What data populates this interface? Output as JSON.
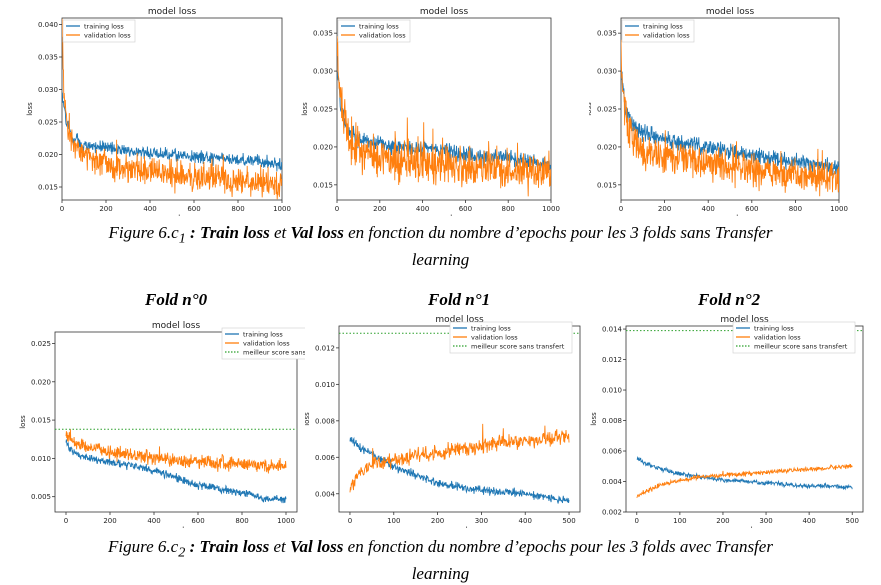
{
  "caption_top": {
    "prefix": "Figure 6.c",
    "sub": "1",
    "colon": " : ",
    "train": "Train loss",
    "et": " et ",
    "val": "Val loss",
    "rest": " en fonction du nombre d’epochs pour les 3 folds sans Transfer",
    "line2": "learning"
  },
  "caption_bottom": {
    "prefix": "Figure 6.c",
    "sub": "2",
    "colon": " : ",
    "train": "Train loss",
    "et": " et ",
    "val": "Val loss",
    "rest": " en fonction du nombre d’epochs pour les 3 folds avec Transfer",
    "line2": "learning"
  },
  "fold_titles": [
    "Fold n°0",
    "Fold n°1",
    "Fold n°2"
  ],
  "colors": {
    "train": "#1f77b4",
    "val": "#ff7f0e",
    "best": "#2ca02c",
    "axis": "#333333"
  },
  "chart_data": [
    {
      "type": "line",
      "title": "model loss",
      "xlabel": "epoch",
      "ylabel": "loss",
      "xlim": [
        0,
        1000
      ],
      "ylim": [
        0.013,
        0.041
      ],
      "xticks": [
        0,
        200,
        400,
        600,
        800,
        1000
      ],
      "yticks": [
        0.015,
        0.02,
        0.025,
        0.03,
        0.035,
        0.04
      ],
      "ytick_labels": [
        "0.015",
        "0.020",
        "0.025",
        "0.030",
        "0.035",
        "0.040"
      ],
      "grid": false,
      "legend": "top-left",
      "series": [
        {
          "name": "training loss",
          "points": [
            [
              0,
              0.029
            ],
            [
              20,
              0.025
            ],
            [
              50,
              0.0225
            ],
            [
              100,
              0.0215
            ],
            [
              200,
              0.021
            ],
            [
              300,
              0.0205
            ],
            [
              400,
              0.0203
            ],
            [
              500,
              0.02
            ],
            [
              600,
              0.0198
            ],
            [
              700,
              0.0195
            ],
            [
              800,
              0.0192
            ],
            [
              900,
              0.019
            ],
            [
              1000,
              0.0182
            ]
          ],
          "noise": 0.0008
        },
        {
          "name": "validation loss",
          "points": [
            [
              0,
              0.04
            ],
            [
              10,
              0.028
            ],
            [
              30,
              0.023
            ],
            [
              60,
              0.021
            ],
            [
              100,
              0.02
            ],
            [
              200,
              0.0185
            ],
            [
              300,
              0.018
            ],
            [
              400,
              0.0175
            ],
            [
              500,
              0.017
            ],
            [
              600,
              0.0165
            ],
            [
              700,
              0.0163
            ],
            [
              800,
              0.016
            ],
            [
              900,
              0.0157
            ],
            [
              1000,
              0.0155
            ]
          ],
          "noise": 0.0018
        }
      ]
    },
    {
      "type": "line",
      "title": "model loss",
      "xlabel": "epoch",
      "ylabel": "loss",
      "xlim": [
        0,
        1000
      ],
      "ylim": [
        0.013,
        0.037
      ],
      "xticks": [
        0,
        200,
        400,
        600,
        800,
        1000
      ],
      "yticks": [
        0.015,
        0.02,
        0.025,
        0.03,
        0.035
      ],
      "ytick_labels": [
        "0.015",
        "0.020",
        "0.025",
        "0.030",
        "0.035"
      ],
      "grid": false,
      "legend": "top-left",
      "series": [
        {
          "name": "training loss",
          "points": [
            [
              0,
              0.03
            ],
            [
              20,
              0.025
            ],
            [
              50,
              0.022
            ],
            [
              100,
              0.021
            ],
            [
              200,
              0.0205
            ],
            [
              300,
              0.02
            ],
            [
              400,
              0.0198
            ],
            [
              500,
              0.0195
            ],
            [
              600,
              0.019
            ],
            [
              700,
              0.0187
            ],
            [
              800,
              0.0185
            ],
            [
              900,
              0.018
            ],
            [
              1000,
              0.0178
            ]
          ],
          "noise": 0.0009
        },
        {
          "name": "validation loss",
          "points": [
            [
              0,
              0.034
            ],
            [
              10,
              0.028
            ],
            [
              30,
              0.024
            ],
            [
              60,
              0.021
            ],
            [
              100,
              0.0195
            ],
            [
              200,
              0.0188
            ],
            [
              300,
              0.0182
            ],
            [
              400,
              0.018
            ],
            [
              500,
              0.0178
            ],
            [
              600,
              0.0175
            ],
            [
              700,
              0.0172
            ],
            [
              800,
              0.017
            ],
            [
              900,
              0.0168
            ],
            [
              1000,
              0.0165
            ]
          ],
          "noise": 0.0022
        }
      ]
    },
    {
      "type": "line",
      "title": "model loss",
      "xlabel": "epoch",
      "ylabel": "loss",
      "xlim": [
        0,
        1000
      ],
      "ylim": [
        0.013,
        0.037
      ],
      "xticks": [
        0,
        200,
        400,
        600,
        800,
        1000
      ],
      "yticks": [
        0.015,
        0.02,
        0.025,
        0.03,
        0.035
      ],
      "ytick_labels": [
        "0.015",
        "0.020",
        "0.025",
        "0.030",
        "0.035"
      ],
      "grid": false,
      "legend": "top-left",
      "series": [
        {
          "name": "training loss",
          "points": [
            [
              0,
              0.03
            ],
            [
              20,
              0.025
            ],
            [
              50,
              0.023
            ],
            [
              100,
              0.022
            ],
            [
              200,
              0.021
            ],
            [
              300,
              0.0205
            ],
            [
              400,
              0.02
            ],
            [
              500,
              0.0195
            ],
            [
              600,
              0.019
            ],
            [
              700,
              0.0185
            ],
            [
              800,
              0.018
            ],
            [
              900,
              0.0175
            ],
            [
              1000,
              0.0172
            ]
          ],
          "noise": 0.0009
        },
        {
          "name": "validation loss",
          "points": [
            [
              0,
              0.034
            ],
            [
              10,
              0.027
            ],
            [
              30,
              0.023
            ],
            [
              60,
              0.021
            ],
            [
              100,
              0.0195
            ],
            [
              200,
              0.019
            ],
            [
              300,
              0.0182
            ],
            [
              400,
              0.0178
            ],
            [
              500,
              0.0175
            ],
            [
              600,
              0.017
            ],
            [
              700,
              0.0167
            ],
            [
              800,
              0.0163
            ],
            [
              900,
              0.016
            ],
            [
              1000,
              0.0158
            ]
          ],
          "noise": 0.0018
        }
      ]
    },
    {
      "type": "line",
      "title": "model loss",
      "xlabel": "epoch",
      "ylabel": "loss",
      "xlim": [
        -50,
        1050
      ],
      "ylim": [
        0.003,
        0.0265
      ],
      "xticks": [
        0,
        200,
        400,
        600,
        800,
        1000
      ],
      "yticks": [
        0.005,
        0.01,
        0.015,
        0.02,
        0.025
      ],
      "ytick_labels": [
        "0.005",
        "0.010",
        "0.015",
        "0.020",
        "0.025"
      ],
      "grid": false,
      "legend": "top-right",
      "series": [
        {
          "name": "training loss",
          "points": [
            [
              0,
              0.0125
            ],
            [
              20,
              0.011
            ],
            [
              50,
              0.0105
            ],
            [
              100,
              0.01
            ],
            [
              200,
              0.0095
            ],
            [
              300,
              0.009
            ],
            [
              400,
              0.0085
            ],
            [
              500,
              0.0075
            ],
            [
              600,
              0.0065
            ],
            [
              700,
              0.006
            ],
            [
              800,
              0.0055
            ],
            [
              900,
              0.0048
            ],
            [
              1000,
              0.0045
            ]
          ],
          "noise": 0.0004
        },
        {
          "name": "validation loss",
          "points": [
            [
              0,
              0.013
            ],
            [
              20,
              0.0125
            ],
            [
              50,
              0.012
            ],
            [
              100,
              0.0115
            ],
            [
              200,
              0.0108
            ],
            [
              300,
              0.0105
            ],
            [
              400,
              0.01
            ],
            [
              500,
              0.0097
            ],
            [
              600,
              0.0095
            ],
            [
              700,
              0.0093
            ],
            [
              800,
              0.0092
            ],
            [
              900,
              0.009
            ],
            [
              1000,
              0.009
            ]
          ],
          "noise": 0.0007
        },
        {
          "name": "meilleur score sans transfert",
          "constant": 0.0138
        }
      ]
    },
    {
      "type": "line",
      "title": "model loss",
      "xlabel": "epoch",
      "ylabel": "loss",
      "xlim": [
        -25,
        525
      ],
      "ylim": [
        0.003,
        0.0132
      ],
      "xticks": [
        0,
        100,
        200,
        300,
        400,
        500
      ],
      "yticks": [
        0.004,
        0.006,
        0.008,
        0.01,
        0.012
      ],
      "ytick_labels": [
        "0.004",
        "0.006",
        "0.008",
        "0.010",
        "0.012"
      ],
      "grid": false,
      "legend": "top-right",
      "series": [
        {
          "name": "training loss",
          "points": [
            [
              0,
              0.0071
            ],
            [
              20,
              0.0066
            ],
            [
              50,
              0.0062
            ],
            [
              100,
              0.0055
            ],
            [
              150,
              0.005
            ],
            [
              200,
              0.0046
            ],
            [
              250,
              0.0044
            ],
            [
              300,
              0.0042
            ],
            [
              350,
              0.0041
            ],
            [
              400,
              0.004
            ],
            [
              450,
              0.0038
            ],
            [
              500,
              0.0036
            ]
          ],
          "noise": 0.00018
        },
        {
          "name": "validation loss",
          "points": [
            [
              0,
              0.0042
            ],
            [
              20,
              0.0052
            ],
            [
              50,
              0.0056
            ],
            [
              100,
              0.0058
            ],
            [
              150,
              0.006
            ],
            [
              200,
              0.0062
            ],
            [
              250,
              0.0065
            ],
            [
              300,
              0.0066
            ],
            [
              350,
              0.0068
            ],
            [
              400,
              0.0069
            ],
            [
              450,
              0.007
            ],
            [
              500,
              0.0072
            ]
          ],
          "noise": 0.00035
        },
        {
          "name": "meilleur score sans transfert",
          "constant": 0.0128
        }
      ]
    },
    {
      "type": "line",
      "title": "model loss",
      "xlabel": "epoch",
      "ylabel": "loss",
      "xlim": [
        -25,
        525
      ],
      "ylim": [
        0.002,
        0.0142
      ],
      "xticks": [
        0,
        100,
        200,
        300,
        400,
        500
      ],
      "yticks": [
        0.002,
        0.004,
        0.006,
        0.008,
        0.01,
        0.012,
        0.014
      ],
      "ytick_labels": [
        "0.002",
        "0.004",
        "0.006",
        "0.008",
        "0.010",
        "0.012",
        "0.014"
      ],
      "grid": false,
      "legend": "top-right",
      "series": [
        {
          "name": "training loss",
          "points": [
            [
              0,
              0.0055
            ],
            [
              20,
              0.0052
            ],
            [
              50,
              0.0049
            ],
            [
              100,
              0.0045
            ],
            [
              150,
              0.0043
            ],
            [
              200,
              0.0041
            ],
            [
              250,
              0.004
            ],
            [
              300,
              0.0039
            ],
            [
              350,
              0.0038
            ],
            [
              400,
              0.0037
            ],
            [
              450,
              0.0037
            ],
            [
              500,
              0.0036
            ]
          ],
          "noise": 0.00012
        },
        {
          "name": "validation loss",
          "points": [
            [
              0,
              0.003
            ],
            [
              20,
              0.0033
            ],
            [
              50,
              0.0037
            ],
            [
              100,
              0.0041
            ],
            [
              150,
              0.0043
            ],
            [
              200,
              0.0044
            ],
            [
              250,
              0.0045
            ],
            [
              300,
              0.0046
            ],
            [
              350,
              0.0047
            ],
            [
              400,
              0.0048
            ],
            [
              450,
              0.0049
            ],
            [
              500,
              0.005
            ]
          ],
          "noise": 0.00012
        },
        {
          "name": "meilleur score sans transfert",
          "constant": 0.0139
        }
      ]
    }
  ]
}
